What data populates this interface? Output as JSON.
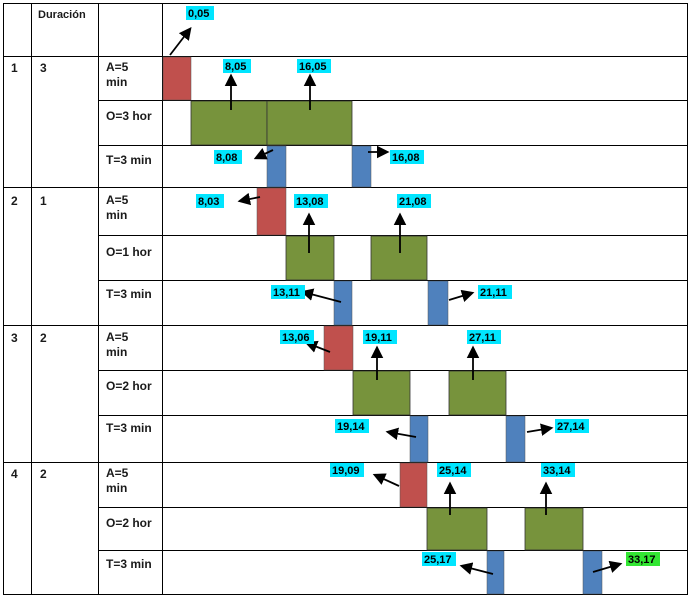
{
  "header": {
    "duracion_label": "Duración"
  },
  "colors": {
    "arrival": "#c0504d",
    "operation": "#77933c",
    "transfer": "#4f81bd",
    "label_bg": "#00e5ff",
    "final_label_bg": "#33e633"
  },
  "start": {
    "label": "0,05"
  },
  "jobs": [
    {
      "id": "1",
      "duration": "3",
      "rows": [
        {
          "label_lines": [
            "A=5",
            "min"
          ]
        },
        {
          "label_lines": [
            "O=3 hor"
          ]
        },
        {
          "label_lines": [
            "T=3 min"
          ]
        }
      ],
      "arrival": {
        "labels": [
          "8,05",
          "16,05"
        ]
      },
      "operation": {
        "labels": []
      },
      "transfer": {
        "labels": [
          "8,08",
          "16,08"
        ]
      }
    },
    {
      "id": "2",
      "duration": "1",
      "rows": [
        {
          "label_lines": [
            "A=5",
            "min"
          ]
        },
        {
          "label_lines": [
            "O=1 hor"
          ]
        },
        {
          "label_lines": [
            "T=3 min"
          ]
        }
      ],
      "arrival": {
        "labels": [
          "8,03",
          "13,08",
          "21,08"
        ]
      },
      "transfer": {
        "labels": [
          "13,11",
          "21,11"
        ]
      }
    },
    {
      "id": "3",
      "duration": "2",
      "rows": [
        {
          "label_lines": [
            "A=5",
            "min"
          ]
        },
        {
          "label_lines": [
            "O=2 hor"
          ]
        },
        {
          "label_lines": [
            "T=3 min"
          ]
        }
      ],
      "arrival": {
        "labels": [
          "13,06",
          "19,11",
          "27,11"
        ]
      },
      "transfer": {
        "labels": [
          "19,14",
          "27,14"
        ]
      }
    },
    {
      "id": "4",
      "duration": "2",
      "rows": [
        {
          "label_lines": [
            "A=5",
            "min"
          ]
        },
        {
          "label_lines": [
            "O=2 hor"
          ]
        },
        {
          "label_lines": [
            "T=3 min"
          ]
        }
      ],
      "arrival": {
        "labels": [
          "19,09",
          "25,14",
          "33,14"
        ]
      },
      "transfer": {
        "labels": [
          "25,17",
          "33,17"
        ]
      }
    }
  ]
}
